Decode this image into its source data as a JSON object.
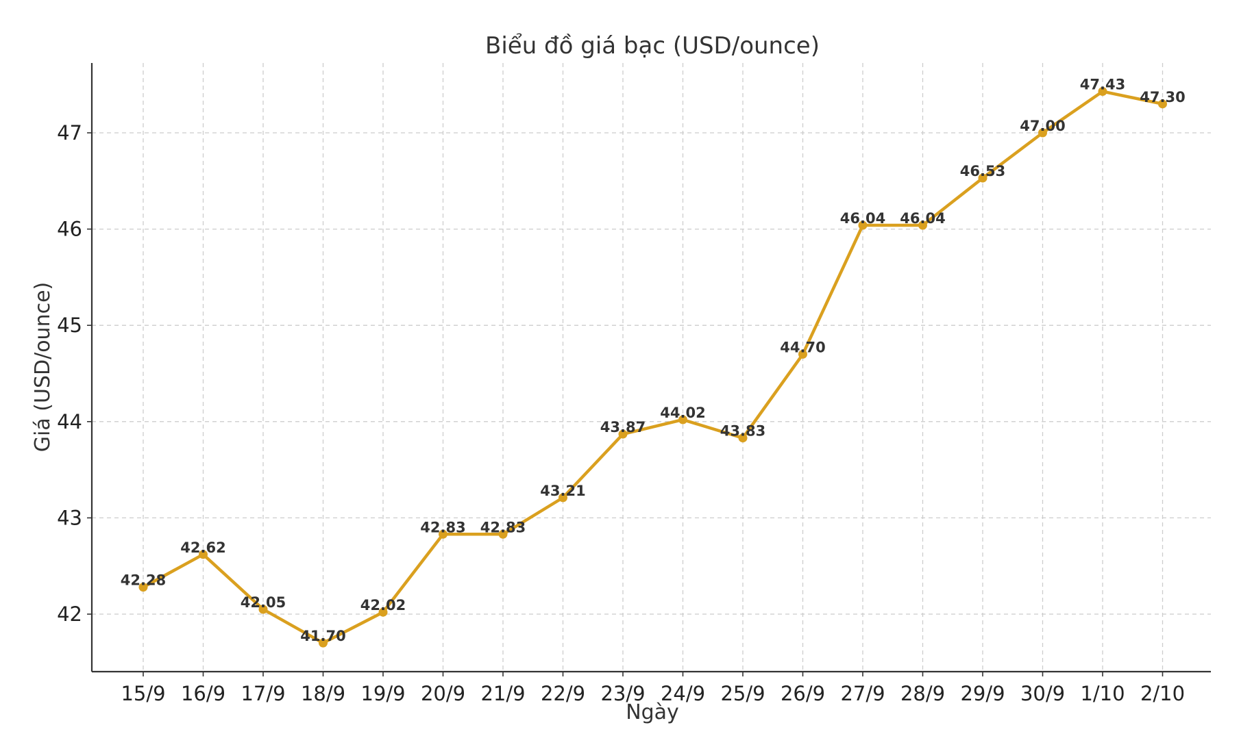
{
  "chart_data": {
    "type": "line",
    "title": "Biểu đồ giá bạc (USD/ounce)",
    "xlabel": "Ngày",
    "ylabel": "Giá (USD/ounce)",
    "categories": [
      "15/9",
      "16/9",
      "17/9",
      "18/9",
      "19/9",
      "20/9",
      "21/9",
      "22/9",
      "23/9",
      "24/9",
      "25/9",
      "26/9",
      "27/9",
      "28/9",
      "29/9",
      "30/9",
      "1/10",
      "2/10"
    ],
    "series": [
      {
        "values": [
          42.28,
          42.62,
          42.05,
          41.7,
          42.02,
          42.83,
          42.83,
          43.21,
          43.87,
          44.02,
          43.83,
          44.7,
          46.04,
          46.04,
          46.53,
          47.0,
          47.43,
          47.3
        ],
        "value_labels": [
          "42.28",
          "42.62",
          "42.05",
          "41.70",
          "42.02",
          "42.83",
          "42.83",
          "43.21",
          "43.87",
          "44.02",
          "43.83",
          "44.70",
          "46.04",
          "46.04",
          "46.53",
          "47.00",
          "47.43",
          "47.30"
        ],
        "color": "#DAA01F"
      }
    ],
    "yticks": [
      42,
      43,
      44,
      45,
      46,
      47
    ],
    "ylim": [
      41.42,
      47.72
    ],
    "grid": true,
    "legend": "none",
    "colors": {
      "line": "#DAA01F",
      "grid": "#cccccc",
      "axis": "#333333",
      "text": "#333333"
    }
  }
}
